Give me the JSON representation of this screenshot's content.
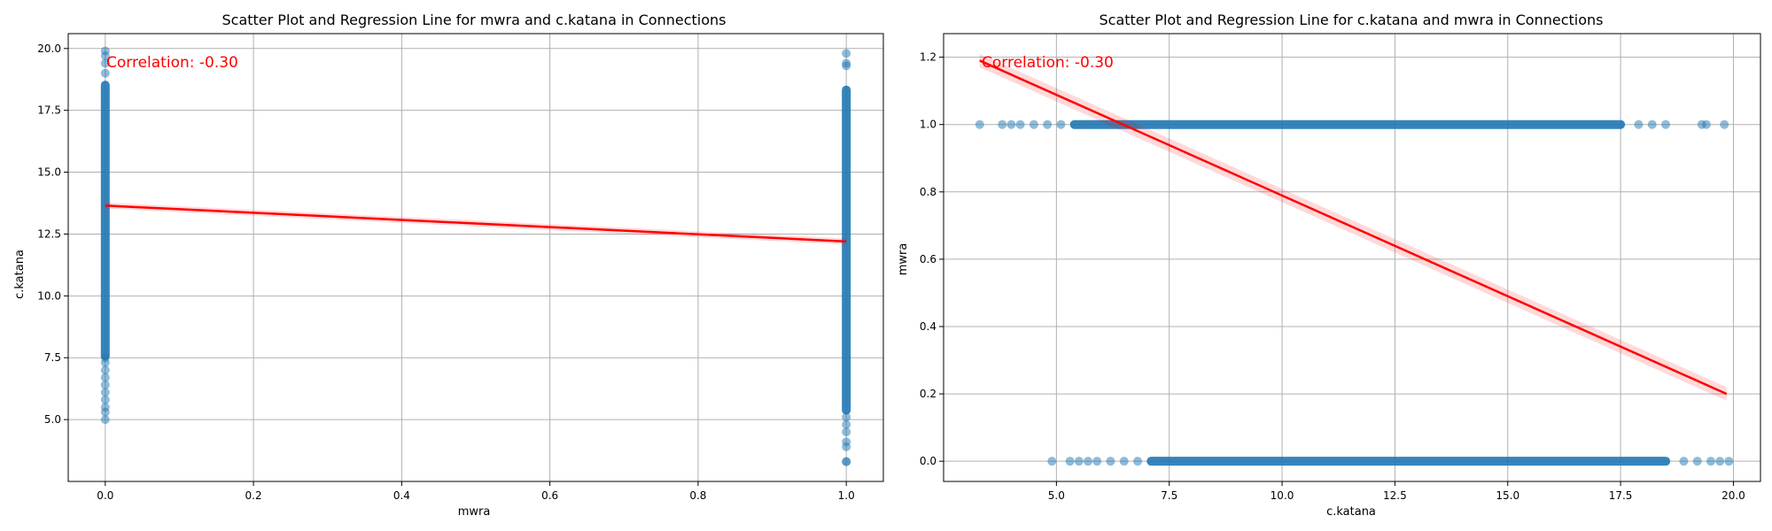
{
  "chart_data": [
    {
      "type": "scatter",
      "title": "Scatter Plot and Regression Line for mwra and c.katana in Connections",
      "xlabel": "mwra",
      "ylabel": "c.katana",
      "xlim": [
        -0.05,
        1.05
      ],
      "ylim": [
        2.5,
        20.6
      ],
      "xticks": [
        "0.0",
        "0.2",
        "0.4",
        "0.6",
        "0.8",
        "1.0"
      ],
      "xtick_values": [
        0,
        0.2,
        0.4,
        0.6,
        0.8,
        1.0
      ],
      "yticks": [
        "5.0",
        "7.5",
        "10.0",
        "12.5",
        "15.0",
        "17.5",
        "20.0"
      ],
      "ytick_values": [
        5,
        7.5,
        10,
        12.5,
        15,
        17.5,
        20
      ],
      "grid": true,
      "annotation": "Correlation: -0.30",
      "points": {
        "groups": [
          {
            "x": 0,
            "y_range": [
              5.0,
              19.9
            ],
            "outliers": [
              5.3,
              5.5,
              5.8,
              6.1,
              6.4,
              6.7,
              7.0,
              7.3,
              7.5,
              19.0,
              19.4,
              19.7,
              19.9
            ]
          },
          {
            "x": 1,
            "y_range": [
              3.3,
              19.8
            ],
            "outliers": [
              3.3,
              3.9,
              4.1,
              4.5,
              4.8,
              5.1,
              19.3,
              19.4,
              19.8
            ]
          }
        ]
      },
      "regression": {
        "x": [
          0,
          1
        ],
        "y": [
          13.65,
          12.2
        ],
        "band": 0.12
      },
      "colors": {
        "points": "#1f77b4",
        "line": "#ff0000",
        "annotation": "#ff0000"
      }
    },
    {
      "type": "scatter",
      "title": "Scatter Plot and Regression Line for c.katana and mwra in Connections",
      "xlabel": "c.katana",
      "ylabel": "mwra",
      "xlim": [
        2.5,
        20.6
      ],
      "ylim": [
        -0.06,
        1.27
      ],
      "xticks": [
        "5.0",
        "7.5",
        "10.0",
        "12.5",
        "15.0",
        "17.5",
        "20.0"
      ],
      "xtick_values": [
        5,
        7.5,
        10,
        12.5,
        15,
        17.5,
        20
      ],
      "yticks": [
        "0.0",
        "0.2",
        "0.4",
        "0.6",
        "0.8",
        "1.0",
        "1.2"
      ],
      "ytick_values": [
        0,
        0.2,
        0.4,
        0.6,
        0.8,
        1.0,
        1.2
      ],
      "grid": true,
      "annotation": "Correlation: -0.30",
      "points": {
        "groups": [
          {
            "y": 1,
            "x_range": [
              3.3,
              19.8
            ],
            "outliers": [
              3.3,
              3.8,
              4.0,
              4.2,
              4.5,
              4.8,
              5.1,
              17.9,
              18.2,
              18.5,
              19.3,
              19.4,
              19.8
            ]
          },
          {
            "y": 0,
            "x_range": [
              4.9,
              19.9
            ],
            "outliers": [
              4.9,
              5.3,
              5.5,
              5.7,
              5.9,
              6.2,
              6.5,
              6.8,
              18.9,
              19.2,
              19.5,
              19.7,
              19.9
            ]
          }
        ]
      },
      "regression": {
        "x": [
          3.3,
          19.85
        ],
        "y": [
          1.19,
          0.2
        ],
        "band": 0.02
      },
      "colors": {
        "points": "#1f77b4",
        "line": "#ff0000",
        "annotation": "#ff0000"
      }
    }
  ]
}
